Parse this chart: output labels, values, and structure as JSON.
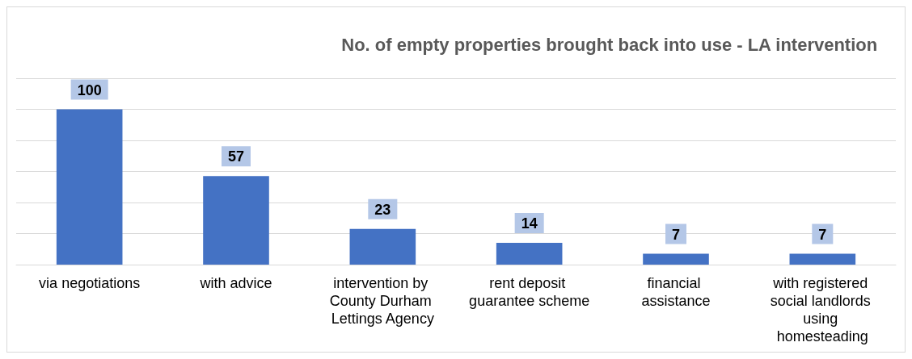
{
  "chart_data": {
    "type": "bar",
    "title": "No. of empty properties brought back into use - LA intervention",
    "categories": [
      "via negotiations",
      "with advice",
      "intervention by County Durham Lettings Agency",
      "rent deposit guarantee scheme",
      "financial assistance",
      "with registered social landlords using homesteading"
    ],
    "values": [
      100,
      57,
      23,
      14,
      7,
      7
    ],
    "color": "#4472c4",
    "ylim": [
      0,
      120
    ],
    "yticks": [
      {
        "value": 0,
        "label": null
      },
      {
        "value": 20,
        "label": null
      },
      {
        "value": 40,
        "label": null
      },
      {
        "value": 60,
        "label": null
      },
      {
        "value": 80,
        "label": null
      },
      {
        "value": 100,
        "label": null
      },
      {
        "value": 120,
        "label": null
      }
    ],
    "tick_labels": "x",
    "grid": "y",
    "data_labels": true
  }
}
